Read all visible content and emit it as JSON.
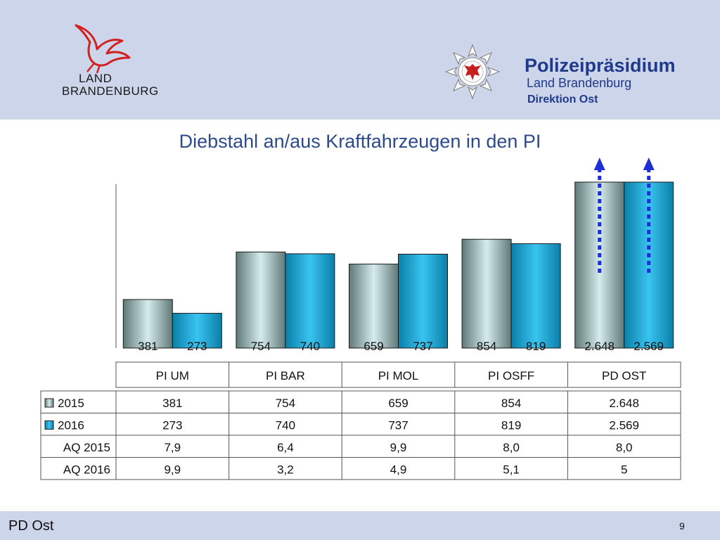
{
  "header": {
    "logo_left_lines": [
      "LAND",
      "BRANDENBURG"
    ],
    "org_title": "Polizeipräsidium",
    "org_subtitle": "Land Brandenburg",
    "org_unit": "Direktion Ost"
  },
  "slide_title": "Diebstahl an/aus Kraftfahrzeugen in den PI",
  "chart_data": {
    "type": "bar",
    "title": "Diebstahl an/aus Kraftfahrzeugen in den PI",
    "categories": [
      "PI UM",
      "PI BAR",
      "PI MOL",
      "PI OSFF",
      "PD OST"
    ],
    "series": [
      {
        "name": "2015",
        "values": [
          381,
          754,
          659,
          854,
          2648
        ],
        "labels": [
          "381",
          "754",
          "659",
          "854",
          "2.648"
        ],
        "color": "#6f8f8f"
      },
      {
        "name": "2016",
        "values": [
          273,
          740,
          737,
          819,
          2569
        ],
        "labels": [
          "273",
          "740",
          "737",
          "819",
          "2.569"
        ],
        "color": "#1aa6d6"
      }
    ],
    "table_rows": [
      {
        "name": "2015",
        "legend": true,
        "cells": [
          "381",
          "754",
          "659",
          "854",
          "2.648"
        ]
      },
      {
        "name": "2016",
        "legend": true,
        "cells": [
          "273",
          "740",
          "737",
          "819",
          "2.569"
        ]
      },
      {
        "name": "AQ 2015",
        "legend": false,
        "cells": [
          "7,9",
          "6,4",
          "9,9",
          "8,0",
          "8,0"
        ]
      },
      {
        "name": "AQ 2016",
        "legend": false,
        "cells": [
          "9,9",
          "3,2",
          "4,9",
          "5,1",
          "5"
        ]
      }
    ],
    "axis_break_category": "PD OST",
    "grid": false,
    "legend_placement": "data-table"
  },
  "footer": {
    "left": "PD Ost",
    "page_number": "9"
  }
}
